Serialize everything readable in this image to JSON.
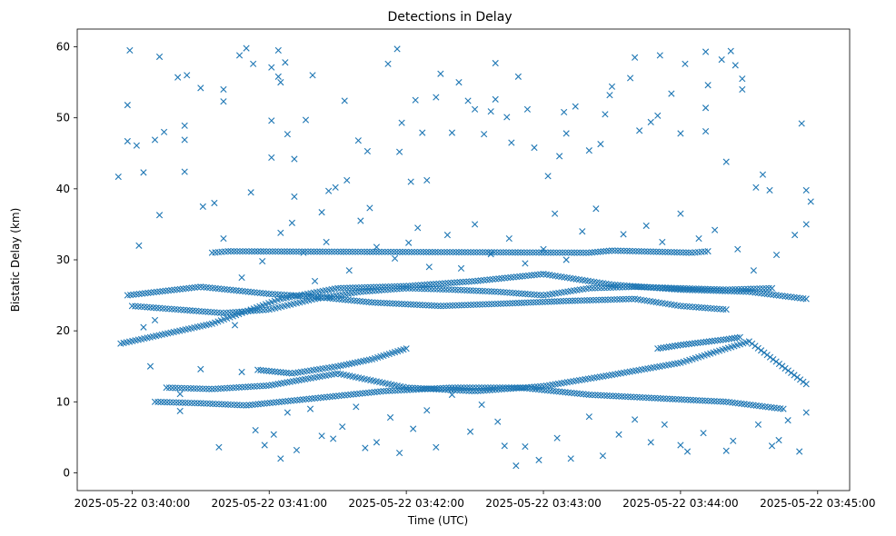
{
  "chart_data": {
    "type": "scatter",
    "title": "Detections in Delay",
    "xlabel": "Time (UTC)",
    "ylabel": "Bistatic Delay (km)",
    "x_unit": "UTC time",
    "xlim": [
      "2025-05-22 03:39:36",
      "2025-05-22 03:45:14"
    ],
    "ylim": [
      -2.5,
      62.5
    ],
    "x_ticks": [
      "2025-05-22 03:40:00",
      "2025-05-22 03:41:00",
      "2025-05-22 03:42:00",
      "2025-05-22 03:43:00",
      "2025-05-22 03:44:00",
      "2025-05-22 03:45:00"
    ],
    "y_ticks": [
      0,
      10,
      20,
      30,
      40,
      50,
      60
    ],
    "marker": "x",
    "color": "#1f77b4",
    "grid": false,
    "legend": "none",
    "tracks": [
      {
        "x": [
          "03:39:55",
          "03:40:35",
          "03:41:05",
          "03:41:30",
          "03:42:00",
          "03:42:30",
          "03:43:00",
          "03:43:30",
          "03:44:00",
          "03:44:30",
          "03:44:55"
        ],
        "y": [
          18.2,
          21.0,
          24.5,
          26.0,
          26.3,
          27.0,
          28.0,
          26.5,
          25.8,
          25.5,
          24.5
        ]
      },
      {
        "x": [
          "03:39:58",
          "03:40:30",
          "03:41:00",
          "03:41:20",
          "03:41:45",
          "03:42:15",
          "03:42:40",
          "03:43:10",
          "03:43:40",
          "03:44:00",
          "03:44:20"
        ],
        "y": [
          25.0,
          26.2,
          25.2,
          24.8,
          24.0,
          23.5,
          23.8,
          24.2,
          24.5,
          23.5,
          23.0
        ]
      },
      {
        "x": [
          "03:40:00",
          "03:40:20",
          "03:40:40",
          "03:41:00",
          "03:41:20",
          "03:41:40",
          "03:42:00",
          "03:42:20",
          "03:42:40",
          "03:43:00",
          "03:43:20",
          "03:43:40",
          "03:44:00",
          "03:44:20",
          "03:44:40"
        ],
        "y": [
          23.5,
          23.0,
          22.5,
          23.0,
          24.5,
          25.5,
          26.0,
          25.8,
          25.5,
          25.0,
          26.0,
          26.2,
          26.0,
          25.8,
          26.0
        ]
      },
      {
        "x": [
          "03:40:15",
          "03:40:35",
          "03:41:00",
          "03:41:30",
          "03:42:00",
          "03:42:30",
          "03:43:00",
          "03:43:30",
          "03:44:00",
          "03:44:30",
          "03:44:55"
        ],
        "y": [
          12.0,
          11.8,
          12.3,
          14.0,
          12.0,
          11.5,
          12.2,
          13.8,
          15.5,
          18.5,
          12.5
        ]
      },
      {
        "x": [
          "03:40:10",
          "03:40:30",
          "03:40:50",
          "03:41:20",
          "03:41:50",
          "03:42:20",
          "03:42:50",
          "03:43:20",
          "03:43:50",
          "03:44:20",
          "03:44:45"
        ],
        "y": [
          10.0,
          9.8,
          9.5,
          10.5,
          11.5,
          12.0,
          12.0,
          11.0,
          10.5,
          10.0,
          9.0
        ]
      },
      {
        "x": [
          "03:43:50",
          "03:44:00",
          "03:44:10",
          "03:44:20",
          "03:44:26"
        ],
        "y": [
          17.5,
          18.0,
          18.4,
          18.8,
          19.1
        ]
      },
      {
        "x": [
          "03:40:55",
          "03:41:10",
          "03:41:30",
          "03:41:45",
          "03:42:00"
        ],
        "y": [
          14.5,
          14.0,
          15.0,
          16.0,
          17.5
        ]
      },
      {
        "x": [
          "03:40:35",
          "03:40:42",
          "03:43:20",
          "03:43:30",
          "03:44:05",
          "03:44:12"
        ],
        "y": [
          31.0,
          31.2,
          31.0,
          31.3,
          31.0,
          31.2
        ]
      }
    ],
    "scatter": [
      [
        "03:39:54",
        41.7
      ],
      [
        "03:39:58",
        51.8
      ],
      [
        "03:39:59",
        59.5
      ],
      [
        "03:39:58",
        46.7
      ],
      [
        "03:40:02",
        46.1
      ],
      [
        "03:40:03",
        32.0
      ],
      [
        "03:40:05",
        42.3
      ],
      [
        "03:40:10",
        46.9
      ],
      [
        "03:40:12",
        58.6
      ],
      [
        "03:40:14",
        48.0
      ],
      [
        "03:40:12",
        36.3
      ],
      [
        "03:40:20",
        55.7
      ],
      [
        "03:40:24",
        56.0
      ],
      [
        "03:40:23",
        48.9
      ],
      [
        "03:40:23",
        46.9
      ],
      [
        "03:40:23",
        42.4
      ],
      [
        "03:40:30",
        54.2
      ],
      [
        "03:40:31",
        37.5
      ],
      [
        "03:40:36",
        38.0
      ],
      [
        "03:40:40",
        54.0
      ],
      [
        "03:40:40",
        52.3
      ],
      [
        "03:40:47",
        58.8
      ],
      [
        "03:40:50",
        59.8
      ],
      [
        "03:40:53",
        57.6
      ],
      [
        "03:40:52",
        39.5
      ],
      [
        "03:41:01",
        57.1
      ],
      [
        "03:41:04",
        55.8
      ],
      [
        "03:41:04",
        59.5
      ],
      [
        "03:41:05",
        55.0
      ],
      [
        "03:41:07",
        57.8
      ],
      [
        "03:41:01",
        49.6
      ],
      [
        "03:41:01",
        44.4
      ],
      [
        "03:41:08",
        47.7
      ],
      [
        "03:41:11",
        44.2
      ],
      [
        "03:41:11",
        38.9
      ],
      [
        "03:41:16",
        49.7
      ],
      [
        "03:41:19",
        56.0
      ],
      [
        "03:41:23",
        36.7
      ],
      [
        "03:41:26",
        39.7
      ],
      [
        "03:41:29",
        40.2
      ],
      [
        "03:41:33",
        52.4
      ],
      [
        "03:41:34",
        41.2
      ],
      [
        "03:41:39",
        46.8
      ],
      [
        "03:41:43",
        45.3
      ],
      [
        "03:41:44",
        37.3
      ],
      [
        "03:41:52",
        57.6
      ],
      [
        "03:41:56",
        59.7
      ],
      [
        "03:41:58",
        49.3
      ],
      [
        "03:41:57",
        45.2
      ],
      [
        "03:42:02",
        41.0
      ],
      [
        "03:42:04",
        52.5
      ],
      [
        "03:42:07",
        47.9
      ],
      [
        "03:42:09",
        41.2
      ],
      [
        "03:42:13",
        52.9
      ],
      [
        "03:42:15",
        56.2
      ],
      [
        "03:42:20",
        47.9
      ],
      [
        "03:42:23",
        55.0
      ],
      [
        "03:42:27",
        52.4
      ],
      [
        "03:42:30",
        51.2
      ],
      [
        "03:42:34",
        47.7
      ],
      [
        "03:42:37",
        50.9
      ],
      [
        "03:42:39",
        52.6
      ],
      [
        "03:42:39",
        57.7
      ],
      [
        "03:42:44",
        50.1
      ],
      [
        "03:42:46",
        46.5
      ],
      [
        "03:42:49",
        55.8
      ],
      [
        "03:42:53",
        51.2
      ],
      [
        "03:42:56",
        45.8
      ],
      [
        "03:43:02",
        41.8
      ],
      [
        "03:43:07",
        44.6
      ],
      [
        "03:43:09",
        50.8
      ],
      [
        "03:43:10",
        47.8
      ],
      [
        "03:43:14",
        51.6
      ],
      [
        "03:43:20",
        45.4
      ],
      [
        "03:43:25",
        46.3
      ],
      [
        "03:43:27",
        50.5
      ],
      [
        "03:43:29",
        53.2
      ],
      [
        "03:43:30",
        54.4
      ],
      [
        "03:43:38",
        55.6
      ],
      [
        "03:43:40",
        58.5
      ],
      [
        "03:43:42",
        48.2
      ],
      [
        "03:43:47",
        49.4
      ],
      [
        "03:43:50",
        50.3
      ],
      [
        "03:43:51",
        58.8
      ],
      [
        "03:43:56",
        53.4
      ],
      [
        "03:44:00",
        47.8
      ],
      [
        "03:44:02",
        57.6
      ],
      [
        "03:44:11",
        51.4
      ],
      [
        "03:44:11",
        48.1
      ],
      [
        "03:44:12",
        54.6
      ],
      [
        "03:44:11",
        59.3
      ],
      [
        "03:44:18",
        58.2
      ],
      [
        "03:44:20",
        43.8
      ],
      [
        "03:44:22",
        59.4
      ],
      [
        "03:44:24",
        57.4
      ],
      [
        "03:44:27",
        55.5
      ],
      [
        "03:44:27",
        54.0
      ],
      [
        "03:44:33",
        40.2
      ],
      [
        "03:44:36",
        42.0
      ],
      [
        "03:44:39",
        39.8
      ],
      [
        "03:44:53",
        49.2
      ],
      [
        "03:44:55",
        39.8
      ],
      [
        "03:44:57",
        38.2
      ],
      [
        "03:44:55",
        35.0
      ],
      [
        "03:40:21",
        11.1
      ],
      [
        "03:40:21",
        8.7
      ],
      [
        "03:40:30",
        14.6
      ],
      [
        "03:40:38",
        3.6
      ],
      [
        "03:40:45",
        20.8
      ],
      [
        "03:40:48",
        14.2
      ],
      [
        "03:40:54",
        6.0
      ],
      [
        "03:40:58",
        3.9
      ],
      [
        "03:41:02",
        5.4
      ],
      [
        "03:41:05",
        2.0
      ],
      [
        "03:41:08",
        8.5
      ],
      [
        "03:41:12",
        3.2
      ],
      [
        "03:41:18",
        9.0
      ],
      [
        "03:41:23",
        5.2
      ],
      [
        "03:41:28",
        4.8
      ],
      [
        "03:41:32",
        6.5
      ],
      [
        "03:41:38",
        9.3
      ],
      [
        "03:41:42",
        3.5
      ],
      [
        "03:41:47",
        4.3
      ],
      [
        "03:41:53",
        7.8
      ],
      [
        "03:41:57",
        2.8
      ],
      [
        "03:42:03",
        6.2
      ],
      [
        "03:42:09",
        8.8
      ],
      [
        "03:42:13",
        3.6
      ],
      [
        "03:42:20",
        11.0
      ],
      [
        "03:42:28",
        5.8
      ],
      [
        "03:42:33",
        9.6
      ],
      [
        "03:42:40",
        7.2
      ],
      [
        "03:42:43",
        3.8
      ],
      [
        "03:42:48",
        1.0
      ],
      [
        "03:42:52",
        3.7
      ],
      [
        "03:42:58",
        1.8
      ],
      [
        "03:43:06",
        4.9
      ],
      [
        "03:43:12",
        2.0
      ],
      [
        "03:43:20",
        7.9
      ],
      [
        "03:43:26",
        2.4
      ],
      [
        "03:43:33",
        5.4
      ],
      [
        "03:43:40",
        7.5
      ],
      [
        "03:43:47",
        4.3
      ],
      [
        "03:43:53",
        6.8
      ],
      [
        "03:44:00",
        3.9
      ],
      [
        "03:44:03",
        3.0
      ],
      [
        "03:44:10",
        5.6
      ],
      [
        "03:44:20",
        3.1
      ],
      [
        "03:44:23",
        4.5
      ],
      [
        "03:44:34",
        6.8
      ],
      [
        "03:44:40",
        3.8
      ],
      [
        "03:44:43",
        4.6
      ],
      [
        "03:44:47",
        7.4
      ],
      [
        "03:44:52",
        3.0
      ],
      [
        "03:44:55",
        8.5
      ],
      [
        "03:40:05",
        20.5
      ],
      [
        "03:40:08",
        15.0
      ],
      [
        "03:40:10",
        21.5
      ],
      [
        "03:40:40",
        33.0
      ],
      [
        "03:40:48",
        27.5
      ],
      [
        "03:40:57",
        29.8
      ],
      [
        "03:41:05",
        33.8
      ],
      [
        "03:41:10",
        35.2
      ],
      [
        "03:41:15",
        31.0
      ],
      [
        "03:41:20",
        27.0
      ],
      [
        "03:41:25",
        32.5
      ],
      [
        "03:41:35",
        28.5
      ],
      [
        "03:41:40",
        35.5
      ],
      [
        "03:41:47",
        31.8
      ],
      [
        "03:41:55",
        30.2
      ],
      [
        "03:42:01",
        32.4
      ],
      [
        "03:42:05",
        34.5
      ],
      [
        "03:42:10",
        29.0
      ],
      [
        "03:42:18",
        33.5
      ],
      [
        "03:42:24",
        28.8
      ],
      [
        "03:42:30",
        35.0
      ],
      [
        "03:42:37",
        30.8
      ],
      [
        "03:42:45",
        33.0
      ],
      [
        "03:42:52",
        29.5
      ],
      [
        "03:43:00",
        31.5
      ],
      [
        "03:43:05",
        36.5
      ],
      [
        "03:43:10",
        30.0
      ],
      [
        "03:43:17",
        34.0
      ],
      [
        "03:43:23",
        37.2
      ],
      [
        "03:43:35",
        33.6
      ],
      [
        "03:43:45",
        34.8
      ],
      [
        "03:43:52",
        32.5
      ],
      [
        "03:44:00",
        36.5
      ],
      [
        "03:44:08",
        33.0
      ],
      [
        "03:44:15",
        34.2
      ],
      [
        "03:44:25",
        31.5
      ],
      [
        "03:44:32",
        28.5
      ],
      [
        "03:44:42",
        30.7
      ],
      [
        "03:44:50",
        33.5
      ]
    ]
  }
}
